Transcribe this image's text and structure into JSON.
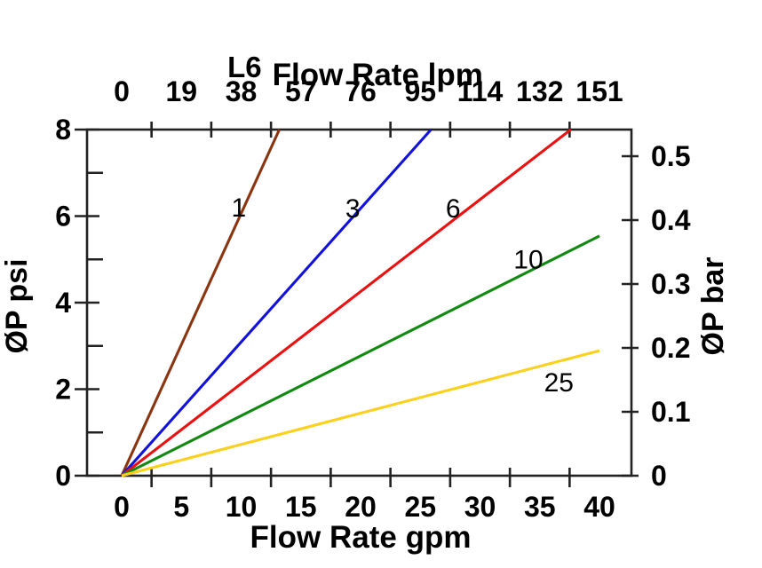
{
  "page": {
    "background": "#ffffff"
  },
  "chart_data": {
    "type": "line",
    "title_prefix": "L6",
    "title": "Flow Rate lpm",
    "x_axis_bottom": {
      "label": "Flow Rate gpm",
      "ticks": [
        0,
        5,
        10,
        15,
        20,
        25,
        30,
        35,
        40
      ],
      "range": [
        0,
        40
      ]
    },
    "x_axis_top": {
      "label": "Flow Rate lpm",
      "tick_labels": [
        "0",
        "19",
        "38",
        "57",
        "76",
        "95",
        "114",
        "132",
        "151"
      ]
    },
    "y_axis_left": {
      "label": "ØP psi",
      "ticks": [
        0,
        2,
        4,
        6,
        8
      ],
      "minor_ticks": [
        1,
        3,
        5,
        7
      ],
      "range": [
        0,
        8
      ]
    },
    "y_axis_right": {
      "label": "ØP bar",
      "ticks": [
        0,
        0.1,
        0.2,
        0.3,
        0.4,
        0.5
      ]
    },
    "grid": false,
    "legend": "inline-labels-on-lines",
    "colors": {
      "axis": "#222222",
      "text": "#000000"
    },
    "series": [
      {
        "name": "1",
        "color": "#8a3510",
        "points": [
          [
            0,
            0
          ],
          [
            13.2,
            8
          ]
        ],
        "label_at": [
          9.8,
          6.2
        ]
      },
      {
        "name": "3",
        "color": "#1212dc",
        "points": [
          [
            0,
            0
          ],
          [
            25.9,
            8
          ]
        ],
        "label_at": [
          19.35,
          6.17
        ]
      },
      {
        "name": "6",
        "color": "#ea1111",
        "points": [
          [
            0,
            0
          ],
          [
            37.6,
            8
          ]
        ],
        "label_at": [
          27.75,
          6.17
        ]
      },
      {
        "name": "10",
        "color": "#128a12",
        "points": [
          [
            0,
            0
          ],
          [
            40,
            5.54
          ]
        ],
        "label_at": [
          34.05,
          5.0
        ]
      },
      {
        "name": "25",
        "color": "#fdd01e",
        "points": [
          [
            0,
            0
          ],
          [
            40,
            2.89
          ]
        ],
        "label_at": [
          36.6,
          2.15
        ]
      }
    ]
  }
}
